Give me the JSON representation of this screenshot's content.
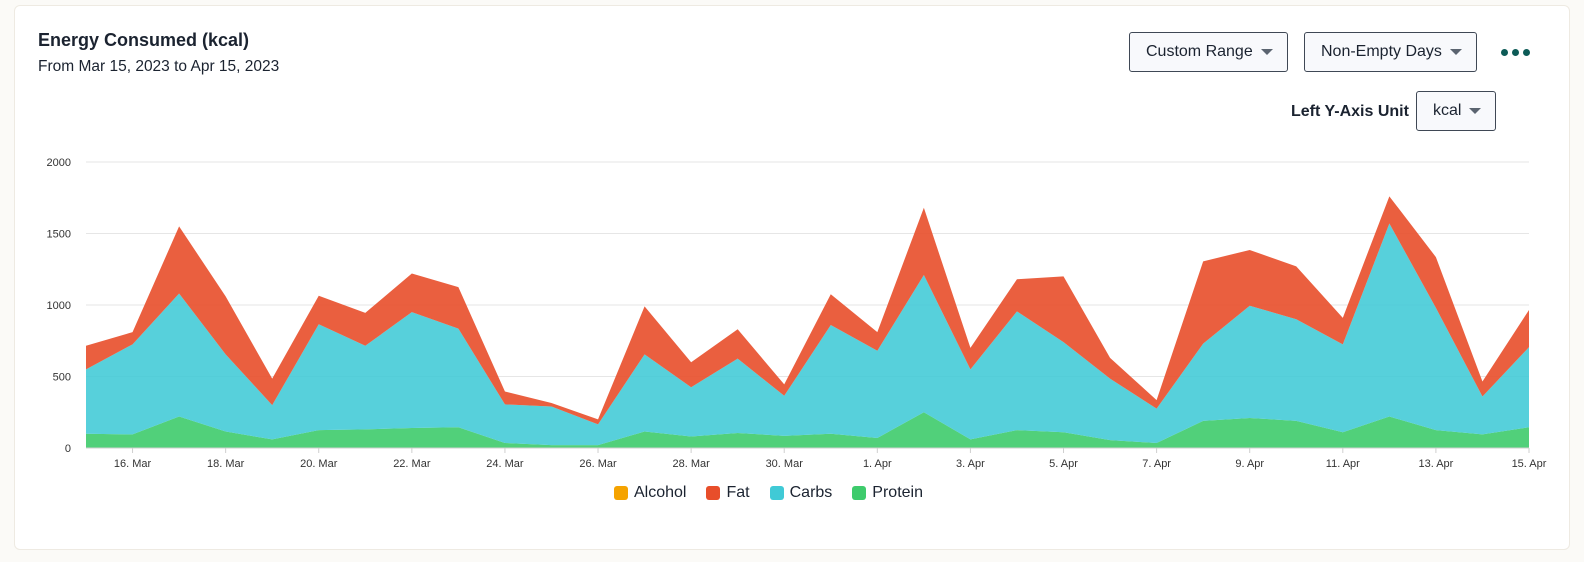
{
  "header": {
    "title": "Energy Consumed (kcal)",
    "subtitle": "From Mar 15, 2023 to Apr 15, 2023"
  },
  "controls": {
    "range_label": "Custom Range",
    "days_label": "Non-Empty Days",
    "unit_label": "Left Y-Axis Unit",
    "unit_value": "kcal"
  },
  "colors": {
    "alcohol": "#f5a300",
    "fat": "#e84e2a",
    "carbs": "#40cad6",
    "protein": "#3ecb6c"
  },
  "chart_data": {
    "type": "area",
    "stacked": true,
    "x": [
      "15. Mar",
      "16. Mar",
      "17. Mar",
      "18. Mar",
      "19. Mar",
      "20. Mar",
      "21. Mar",
      "22. Mar",
      "23. Mar",
      "24. Mar",
      "25. Mar",
      "26. Mar",
      "27. Mar",
      "28. Mar",
      "29. Mar",
      "30. Mar",
      "31. Mar",
      "1. Apr",
      "2. Apr",
      "3. Apr",
      "4. Apr",
      "5. Apr",
      "6. Apr",
      "7. Apr",
      "8. Apr",
      "9. Apr",
      "10. Apr",
      "11. Apr",
      "12. Apr",
      "13. Apr",
      "14. Apr",
      "15. Apr"
    ],
    "x_tick_labels": [
      "16. Mar",
      "18. Mar",
      "20. Mar",
      "22. Mar",
      "24. Mar",
      "26. Mar",
      "28. Mar",
      "30. Mar",
      "1. Apr",
      "3. Apr",
      "5. Apr",
      "7. Apr",
      "9. Apr",
      "11. Apr",
      "13. Apr",
      "15. Apr"
    ],
    "y_ticks": [
      0,
      500,
      1000,
      1500,
      2000
    ],
    "ylim": [
      0,
      2000
    ],
    "grid": true,
    "legend_position": "bottom",
    "series": [
      {
        "name": "Alcohol",
        "values": [
          0,
          0,
          0,
          0,
          0,
          0,
          0,
          0,
          0,
          0,
          0,
          0,
          0,
          0,
          0,
          0,
          0,
          0,
          0,
          0,
          0,
          0,
          0,
          0,
          0,
          0,
          0,
          0,
          0,
          0,
          0,
          0
        ]
      },
      {
        "name": "Fat",
        "values": [
          165,
          85,
          470,
          405,
          185,
          200,
          230,
          270,
          290,
          90,
          25,
          35,
          335,
          175,
          205,
          80,
          215,
          130,
          470,
          150,
          225,
          460,
          145,
          60,
          575,
          390,
          370,
          185,
          190,
          355,
          105,
          260
        ]
      },
      {
        "name": "Carbs",
        "values": [
          450,
          630,
          860,
          540,
          240,
          740,
          585,
          810,
          690,
          270,
          270,
          145,
          540,
          345,
          520,
          280,
          760,
          610,
          960,
          490,
          830,
          630,
          430,
          240,
          540,
          785,
          710,
          615,
          1350,
          855,
          265,
          560
        ]
      },
      {
        "name": "Protein",
        "values": [
          100,
          95,
          220,
          115,
          60,
          125,
          130,
          140,
          145,
          35,
          20,
          20,
          115,
          80,
          105,
          85,
          100,
          70,
          250,
          60,
          125,
          110,
          55,
          35,
          190,
          210,
          190,
          110,
          220,
          125,
          95,
          145
        ]
      }
    ]
  }
}
